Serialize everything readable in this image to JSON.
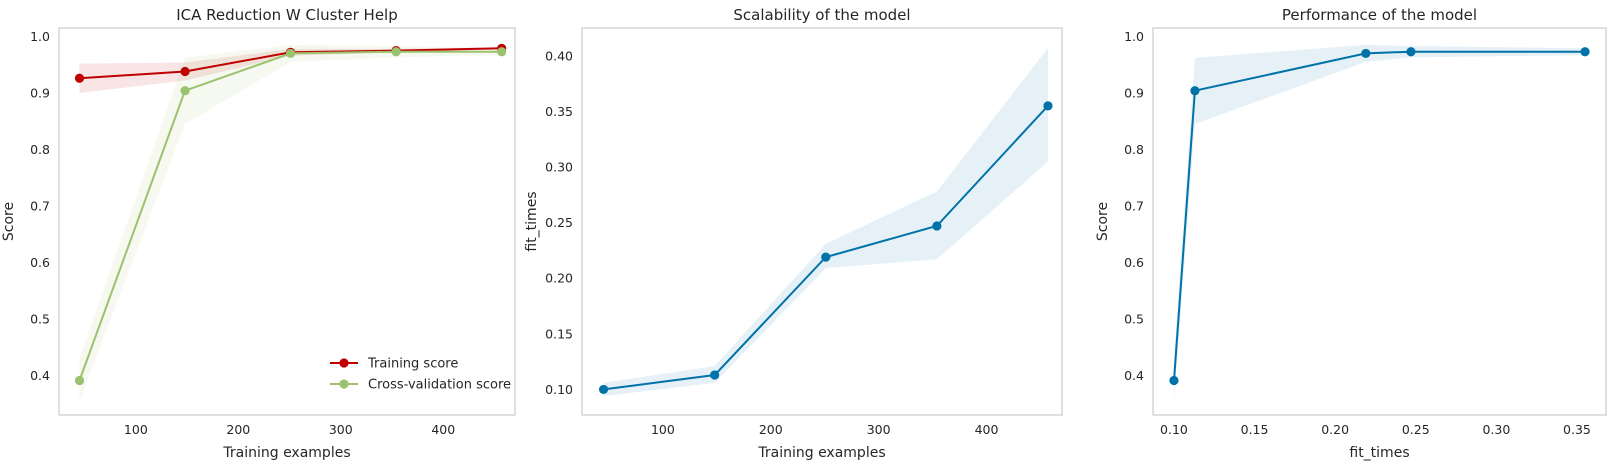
{
  "chart_data": [
    {
      "type": "line",
      "title": "ICA Reduction W Cluster Help",
      "xlabel": "Training examples",
      "ylabel": "Score",
      "xlim": [
        25,
        470
      ],
      "ylim": [
        0.33,
        1.015
      ],
      "xticks": [
        100,
        200,
        300,
        400
      ],
      "yticks": [
        0.4,
        0.5,
        0.6,
        0.7,
        0.8,
        0.9,
        1.0
      ],
      "grid": false,
      "legend": "lower-right",
      "series": [
        {
          "name": "Training score",
          "color": "#c00000",
          "x": [
            45,
            148,
            251,
            354,
            457
          ],
          "y": [
            0.926,
            0.938,
            0.972,
            0.975,
            0.979
          ],
          "band_lower": [
            0.9,
            0.922,
            0.966,
            0.972,
            0.977
          ],
          "band_upper": [
            0.952,
            0.954,
            0.978,
            0.978,
            0.981
          ]
        },
        {
          "name": "Cross-validation score",
          "color": "#9bc26e",
          "x": [
            45,
            148,
            251,
            354,
            457
          ],
          "y": [
            0.391,
            0.904,
            0.97,
            0.973,
            0.973
          ],
          "band_lower": [
            0.355,
            0.845,
            0.955,
            0.963,
            0.967
          ],
          "band_upper": [
            0.43,
            0.962,
            0.985,
            0.983,
            0.979
          ]
        }
      ]
    },
    {
      "type": "line",
      "title": "Scalability of the model",
      "xlabel": "Training examples",
      "ylabel": "fit_times",
      "xlim": [
        25,
        470
      ],
      "ylim": [
        0.077,
        0.425
      ],
      "xticks": [
        100,
        200,
        300,
        400
      ],
      "yticks": [
        0.1,
        0.15,
        0.2,
        0.25,
        0.3,
        0.35,
        0.4
      ],
      "grid": false,
      "series": [
        {
          "color": "#0072a8",
          "x": [
            45,
            148,
            251,
            354,
            457
          ],
          "y": [
            0.1,
            0.113,
            0.219,
            0.247,
            0.355
          ],
          "band_lower": [
            0.094,
            0.106,
            0.209,
            0.217,
            0.305
          ],
          "band_upper": [
            0.106,
            0.121,
            0.231,
            0.278,
            0.407
          ]
        }
      ]
    },
    {
      "type": "line",
      "title": "Performance of the model",
      "xlabel": "fit_times",
      "ylabel": "Score",
      "xlim": [
        0.087,
        0.368
      ],
      "ylim": [
        0.33,
        1.015
      ],
      "xticks": [
        0.1,
        0.15,
        0.2,
        0.25,
        0.3,
        0.35
      ],
      "yticks": [
        0.4,
        0.5,
        0.6,
        0.7,
        0.8,
        0.9,
        1.0
      ],
      "grid": false,
      "series": [
        {
          "color": "#0072a8",
          "x": [
            0.1,
            0.113,
            0.219,
            0.247,
            0.355
          ],
          "y": [
            0.391,
            0.904,
            0.97,
            0.973,
            0.973
          ],
          "band_lower": [
            0.355,
            0.845,
            0.955,
            0.963,
            0.967
          ],
          "band_upper": [
            0.43,
            0.962,
            0.985,
            0.983,
            0.979
          ]
        }
      ]
    }
  ]
}
